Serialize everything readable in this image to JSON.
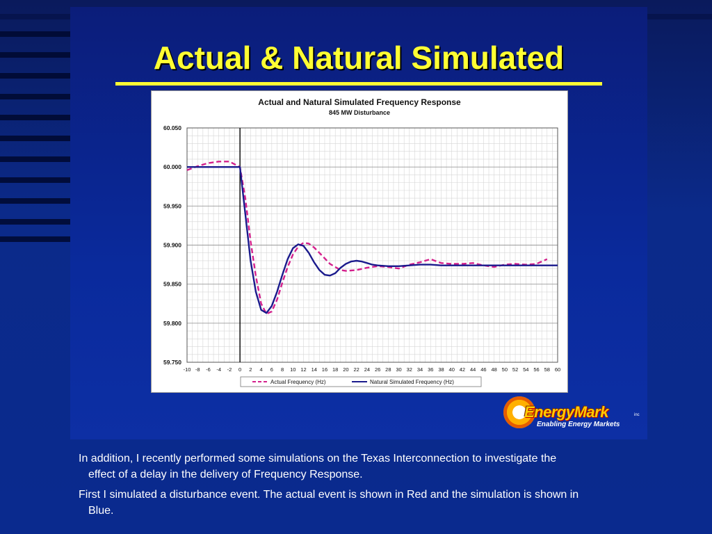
{
  "slide": {
    "title": "Actual & Natural Simulated",
    "paragraphs": [
      "In addition, I recently performed some simulations on the Texas Interconnection to investigate the effect of a delay in the delivery of Frequency Response.",
      "First I simulated a disturbance event.  The actual event is shown in Red and the simulation is shown in Blue."
    ]
  },
  "logo": {
    "name": "EnergyMark",
    "suffix": "inc",
    "tagline": "Enabling Energy Markets"
  },
  "colors": {
    "title": "#ffff33",
    "actual": "#d4208c",
    "simulated": "#1a1a8c"
  },
  "chart_data": {
    "type": "line",
    "title": "Actual and Natural Simulated Frequency Response",
    "subtitle": "845 MW Disturbance",
    "xlim": [
      -10,
      60
    ],
    "ylim": [
      59.75,
      60.05
    ],
    "x_ticks": [
      "-10",
      "-8",
      "-6",
      "-4",
      "-2",
      "0",
      "2",
      "4",
      "6",
      "8",
      "10",
      "12",
      "14",
      "16",
      "18",
      "20",
      "22",
      "24",
      "26",
      "28",
      "30",
      "32",
      "34",
      "36",
      "38",
      "40",
      "42",
      "44",
      "46",
      "48",
      "50",
      "52",
      "54",
      "56",
      "58",
      "60"
    ],
    "y_ticks": [
      "60.050",
      "60.000",
      "59.950",
      "59.900",
      "59.850",
      "59.800",
      "59.750"
    ],
    "grid": true,
    "legend_position": "bottom",
    "series": [
      {
        "name": "Actual Frequency (Hz)",
        "style": "dashed",
        "color": "#d4208c",
        "x": [
          -10,
          -8,
          -6,
          -4,
          -2,
          0,
          1,
          2,
          3,
          4,
          5,
          6,
          7,
          8,
          9,
          10,
          11,
          12,
          13,
          14,
          15,
          16,
          17,
          18,
          19,
          20,
          22,
          24,
          26,
          28,
          30,
          32,
          34,
          36,
          38,
          40,
          42,
          44,
          46,
          48,
          50,
          52,
          54,
          56,
          58
        ],
        "y": [
          59.996,
          60.001,
          60.005,
          60.007,
          60.007,
          60.0,
          59.96,
          59.905,
          59.86,
          59.825,
          59.812,
          59.815,
          59.83,
          59.852,
          59.872,
          59.888,
          59.898,
          59.903,
          59.902,
          59.897,
          59.89,
          59.883,
          59.876,
          59.872,
          59.868,
          59.867,
          59.868,
          59.871,
          59.873,
          59.872,
          59.87,
          59.875,
          59.878,
          59.882,
          59.877,
          59.876,
          59.876,
          59.877,
          59.874,
          59.872,
          59.875,
          59.876,
          59.875,
          59.876,
          59.882
        ]
      },
      {
        "name": "Natural Simulated Frequency (Hz)",
        "style": "solid",
        "color": "#1a1a8c",
        "x": [
          -10,
          -8,
          -6,
          -4,
          -2,
          0,
          1,
          2,
          3,
          4,
          5,
          6,
          7,
          8,
          9,
          10,
          11,
          12,
          13,
          14,
          15,
          16,
          17,
          18,
          19,
          20,
          21,
          22,
          23,
          24,
          25,
          26,
          28,
          30,
          32,
          34,
          36,
          38,
          40,
          42,
          44,
          46,
          48,
          50,
          52,
          54,
          56,
          58,
          60
        ],
        "y": [
          60.0,
          60.0,
          60.0,
          60.0,
          60.0,
          60.0,
          59.94,
          59.88,
          59.84,
          59.817,
          59.813,
          59.822,
          59.84,
          59.862,
          59.882,
          59.896,
          59.901,
          59.899,
          59.89,
          59.878,
          59.868,
          59.862,
          59.861,
          59.864,
          59.871,
          59.876,
          59.879,
          59.88,
          59.879,
          59.877,
          59.875,
          59.874,
          59.873,
          59.873,
          59.874,
          59.875,
          59.875,
          59.874,
          59.874,
          59.874,
          59.874,
          59.874,
          59.874,
          59.874,
          59.874,
          59.874,
          59.874,
          59.874,
          59.874
        ]
      }
    ]
  }
}
